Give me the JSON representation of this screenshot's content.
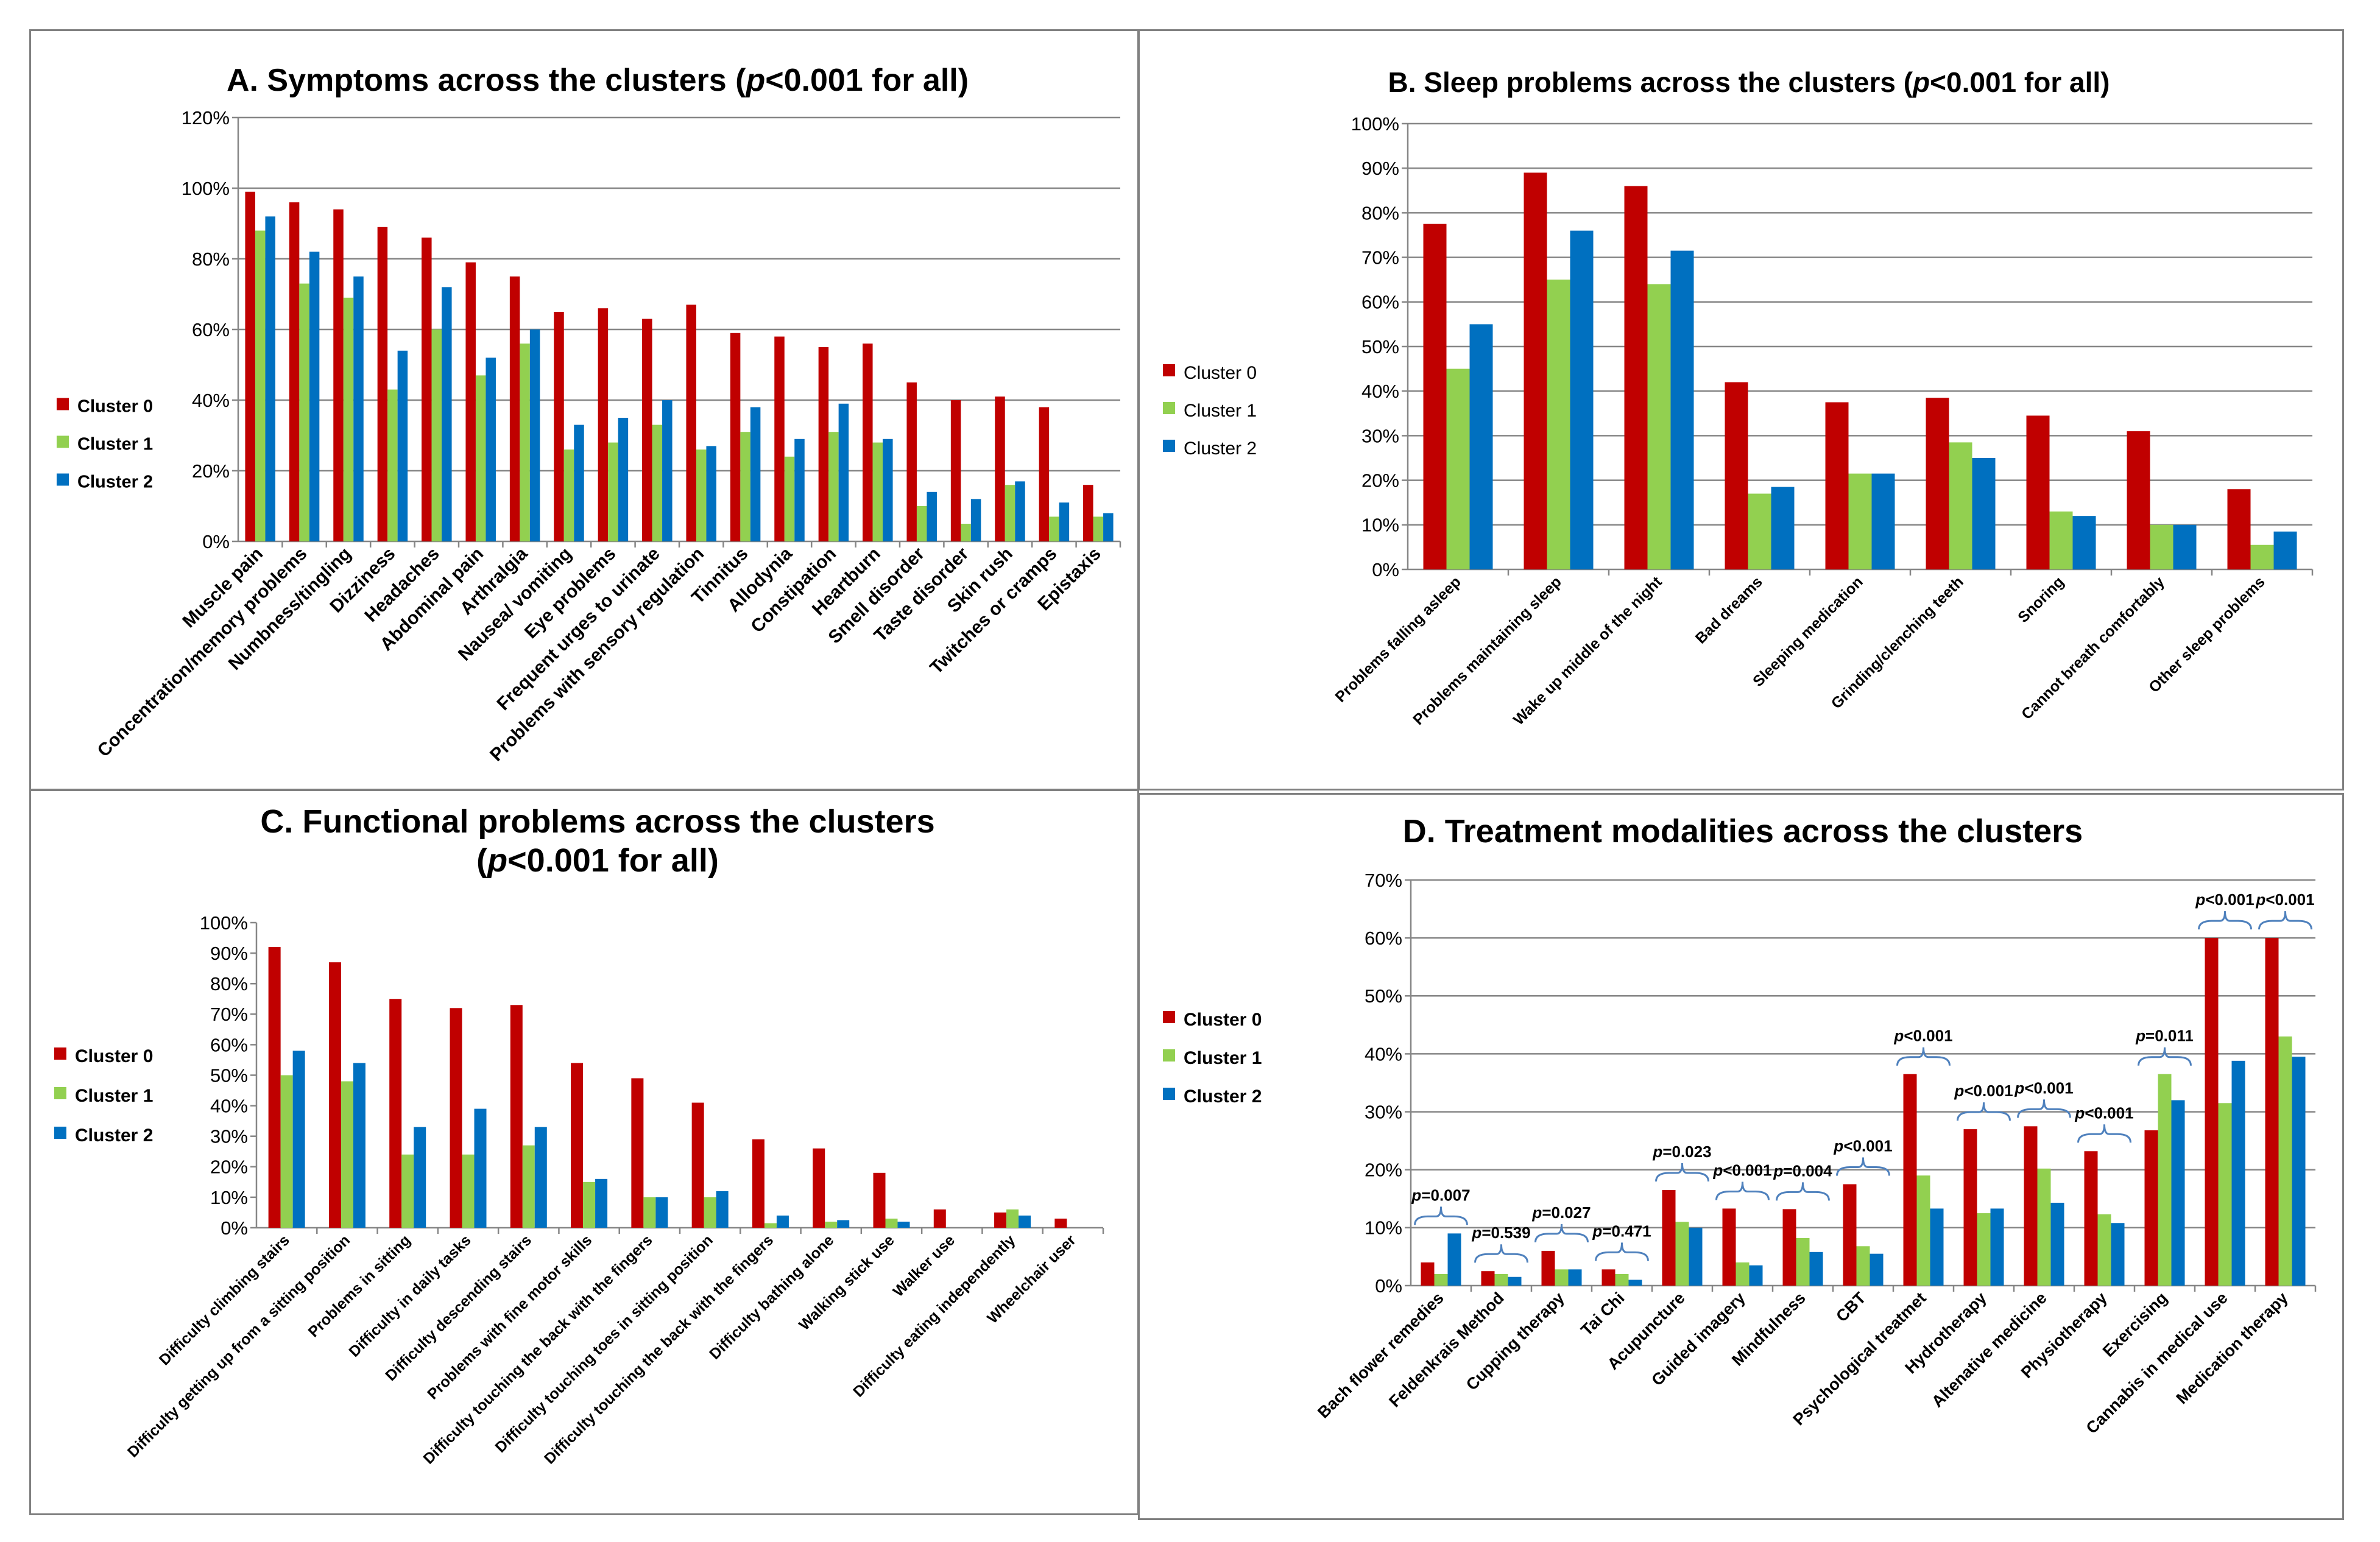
{
  "chart_data": [
    {
      "id": "A",
      "type": "bar",
      "title": "A. Symptoms across the clusters (p<0.001 for all)",
      "title_pre": "A. Symptoms across the clusters (",
      "title_italic": "p",
      "title_post": "<0.001 for all)",
      "ylim": [
        0,
        120
      ],
      "yticks": [
        0,
        20,
        40,
        60,
        80,
        100,
        120
      ],
      "ytick_labels": [
        "0%",
        "20%",
        "40%",
        "60%",
        "80%",
        "100%",
        "120%"
      ],
      "grid": true,
      "legend_position": "left",
      "legend_weight": "bold",
      "categories": [
        "Muscle pain",
        "Concentration/memory problems",
        "Numbness/tingling",
        "Dizziness",
        "Headaches",
        "Abdominal pain",
        "Arthralgia",
        "Nausea/ vomiting",
        "Eye problems",
        "Frequent urges to urinate",
        "Problems with sensory regulation",
        "Tinnitus",
        "Allodynia",
        "Constipation",
        "Heartburn",
        "Smell disorder",
        "Taste disorder",
        "Skin rush",
        "Twitches or cramps",
        "Epistaxis"
      ],
      "series": [
        {
          "name": "Cluster 0",
          "color": "#C00000",
          "values": [
            99,
            96,
            94,
            89,
            86,
            79,
            75,
            65,
            66,
            63,
            67,
            59,
            58,
            55,
            56,
            45,
            40,
            41,
            38,
            16
          ]
        },
        {
          "name": "Cluster 1",
          "color": "#92D050",
          "values": [
            88,
            73,
            69,
            43,
            60,
            47,
            56,
            26,
            28,
            33,
            26,
            31,
            24,
            31,
            28,
            10,
            5,
            16,
            7,
            7
          ]
        },
        {
          "name": "Cluster 2",
          "color": "#0070C0",
          "values": [
            92,
            82,
            75,
            54,
            72,
            52,
            60,
            33,
            35,
            40,
            27,
            38,
            29,
            39,
            29,
            14,
            12,
            17,
            11,
            8
          ]
        }
      ]
    },
    {
      "id": "B",
      "type": "bar",
      "title": "B. Sleep problems across the clusters (p<0.001 for all)",
      "title_pre": "B. Sleep problems across the clusters (",
      "title_italic": "p",
      "title_post": "<0.001 for all)",
      "ylim": [
        0,
        100
      ],
      "yticks": [
        0,
        10,
        20,
        30,
        40,
        50,
        60,
        70,
        80,
        90,
        100
      ],
      "ytick_labels": [
        "0%",
        "10%",
        "20%",
        "30%",
        "40%",
        "50%",
        "60%",
        "70%",
        "80%",
        "90%",
        "100%"
      ],
      "grid": true,
      "legend_position": "left",
      "legend_weight": "normal",
      "categories": [
        "Problems falling asleep",
        "Problems maintaining sleep",
        "Wake up middle of the night",
        "Bad dreams",
        "Sleeping medication",
        "Grinding/clenching teeth",
        "Snoring",
        "Cannot breath comfortably",
        "Other sleep problems"
      ],
      "series": [
        {
          "name": "Cluster 0",
          "color": "#C00000",
          "values": [
            77.5,
            89,
            86,
            42,
            37.5,
            38.5,
            34.5,
            31,
            18
          ]
        },
        {
          "name": "Cluster 1",
          "color": "#92D050",
          "values": [
            45,
            65,
            64,
            17,
            21.5,
            28.5,
            13,
            10,
            5.5
          ]
        },
        {
          "name": "Cluster 2",
          "color": "#0070C0",
          "values": [
            55,
            76,
            71.5,
            18.5,
            21.5,
            25,
            12,
            10,
            8.5
          ]
        }
      ]
    },
    {
      "id": "C",
      "type": "bar",
      "title": "C. Functional problems across the clusters (p<0.001 for all)",
      "title_line1": "C. Functional problems across the clusters",
      "title_pre": "(",
      "title_italic": "p",
      "title_post": "<0.001 for all)",
      "ylim": [
        0,
        100
      ],
      "yticks": [
        0,
        10,
        20,
        30,
        40,
        50,
        60,
        70,
        80,
        90,
        100
      ],
      "ytick_labels": [
        "0%",
        "10%",
        "20%",
        "30%",
        "40%",
        "50%",
        "60%",
        "70%",
        "80%",
        "90%",
        "100%"
      ],
      "grid": false,
      "legend_position": "left",
      "legend_weight": "bold",
      "categories": [
        "Difficulty climbing stairs",
        "Difficulty getting up from a sitting position",
        "Problems in sitting",
        "Difficulty in daily tasks",
        "Difficulty descending stairs",
        "Problems with fine motor skills",
        "Difficulty touching the back with the fingers",
        "Difficulty touching toes in sitting position",
        "Difficulty touching the back with the fingers",
        "Difficulty bathing alone",
        "Walking stick use",
        "Walker use",
        "Difficulty eating independently",
        "Wheelchair user"
      ],
      "series": [
        {
          "name": "Cluster 0",
          "color": "#C00000",
          "values": [
            92,
            87,
            75,
            72,
            73,
            54,
            49,
            41,
            29,
            26,
            18,
            6,
            5,
            3
          ]
        },
        {
          "name": "Cluster 1",
          "color": "#92D050",
          "values": [
            50,
            48,
            24,
            24,
            27,
            15,
            10,
            10,
            1.5,
            2,
            3,
            0,
            6,
            0
          ]
        },
        {
          "name": "Cluster 2",
          "color": "#0070C0",
          "values": [
            58,
            54,
            33,
            39,
            33,
            16,
            10,
            12,
            4,
            2.5,
            2,
            0,
            4,
            0
          ]
        }
      ]
    },
    {
      "id": "D",
      "type": "bar",
      "title": "D. Treatment modalities across the clusters",
      "ylim": [
        0,
        70
      ],
      "yticks": [
        0,
        10,
        20,
        30,
        40,
        50,
        60,
        70
      ],
      "ytick_labels": [
        "0%",
        "10%",
        "20%",
        "30%",
        "40%",
        "50%",
        "60%",
        "70%"
      ],
      "grid": true,
      "legend_position": "left",
      "legend_weight": "bold",
      "categories": [
        "Bach flower remedies",
        "Feldenkrais Method",
        "Cupping therapy",
        "Tai Chi",
        "Acupuncture",
        "Guided imagery",
        "Mindfulness",
        "CBT",
        "Psychological treatmet",
        "Hydrotherapy",
        "Altenative medicine",
        "Physiotherapy",
        "Exercising",
        "Cannabis in medical use",
        "Medication therapy"
      ],
      "series": [
        {
          "name": "Cluster 0",
          "color": "#C00000",
          "values": [
            4,
            2.5,
            6,
            2.8,
            16.5,
            13.3,
            13.2,
            17.5,
            36.5,
            27,
            27.5,
            23.2,
            26.8,
            60,
            60
          ]
        },
        {
          "name": "Cluster 1",
          "color": "#92D050",
          "values": [
            2,
            2,
            2.8,
            2,
            11,
            4,
            8.2,
            6.8,
            19,
            12.5,
            20.2,
            12.3,
            36.5,
            31.5,
            43
          ]
        },
        {
          "name": "Cluster 2",
          "color": "#0070C0",
          "values": [
            9,
            1.5,
            2.8,
            1,
            10,
            3.5,
            5.8,
            5.5,
            13.3,
            13.3,
            14.3,
            10.8,
            32,
            38.8,
            39.5
          ]
        }
      ],
      "annotations": [
        "p=0.007",
        "p=0.539",
        "p=0.027",
        "p=0.471",
        "p=0.023",
        "p<0.001",
        "p=0.004",
        "p<0.001",
        "p<0.001",
        "p<0.001",
        "p<0.001",
        "p<0.001",
        "p=0.011",
        "p<0.001",
        "p<0.001"
      ]
    }
  ]
}
